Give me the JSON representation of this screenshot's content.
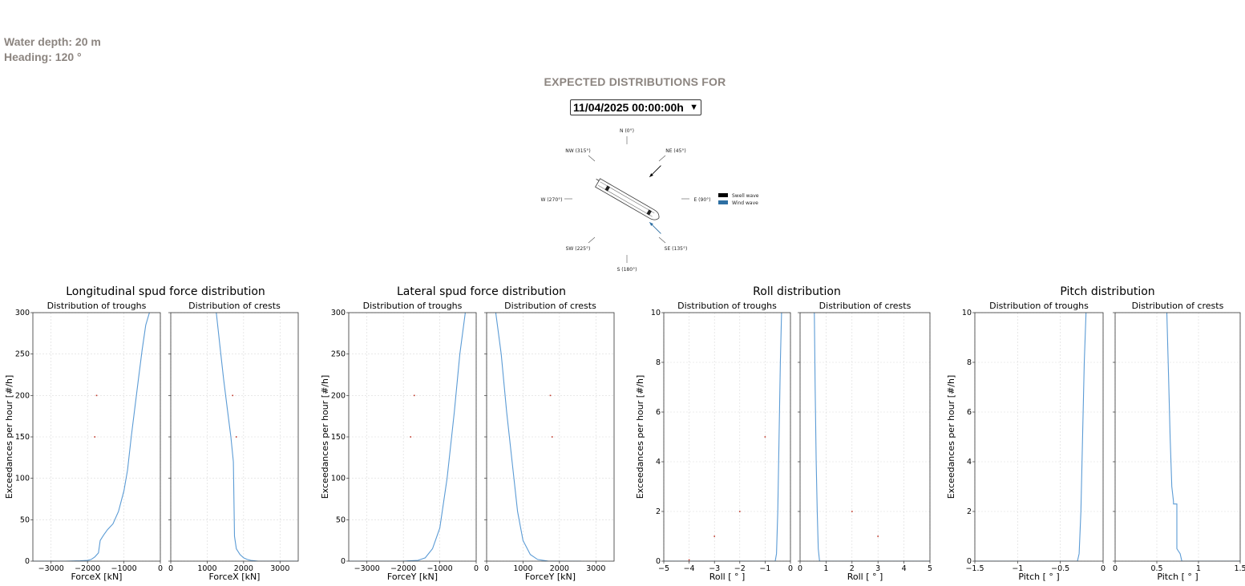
{
  "header": {
    "water_depth": "Water depth: 20 m",
    "heading": "Heading: 120 °",
    "title": "EXPECTED DISTRIBUTIONS FOR",
    "date_selected": "11/04/2025 00:00:00h"
  },
  "compass": {
    "labels": [
      "N (0°)",
      "NE (45°)",
      "E (90°)",
      "SE (135°)",
      "S (180°)",
      "SW (225°)",
      "W (270°)",
      "NW (315°)"
    ],
    "legend": [
      {
        "label": "Swell wave",
        "color": "#000000"
      },
      {
        "label": "Wind wave",
        "color": "#2e6fa3"
      }
    ],
    "swell_direction_deg": 45,
    "wind_direction_deg": 135,
    "vessel_heading_deg": 120
  },
  "colors": {
    "line": "#5b9bd5",
    "grid": "#d9d9d9",
    "marker": "#c0392b"
  },
  "chart_data": [
    {
      "type": "line",
      "title": "Longitudinal spud force distribution",
      "ylabel": "Exceedances per hour [#/h]",
      "ylim": [
        0,
        300
      ],
      "yticks": [
        0,
        50,
        100,
        150,
        200,
        250,
        300
      ],
      "grid": true,
      "panels": [
        {
          "subtitle": "Distribution of troughs",
          "xlabel": "ForceX [kN]",
          "xlim": [
            -3500,
            0
          ],
          "xticks": [
            -3000,
            -2000,
            -1000,
            0
          ],
          "series": [
            {
              "x": [
                -3500,
                -2600,
                -2200,
                -2000,
                -1900,
                -1800,
                -1700,
                -1650,
                -1550,
                -1450,
                -1300,
                -1150,
                -1000,
                -900,
                -800,
                -700,
                -600,
                -500,
                -400,
                -300
              ],
              "y": [
                0,
                0,
                0.5,
                1,
                2,
                5,
                10,
                25,
                32,
                38,
                45,
                60,
                85,
                110,
                150,
                185,
                220,
                255,
                285,
                300
              ]
            }
          ],
          "markers": [
            {
              "x": -1750,
              "y": 200
            },
            {
              "x": -1800,
              "y": 150
            }
          ]
        },
        {
          "subtitle": "Distribution of crests",
          "xlabel": "ForceX [kN]",
          "xlim": [
            0,
            3500
          ],
          "xticks": [
            0,
            1000,
            2000,
            3000
          ],
          "series": [
            {
              "x": [
                1250,
                1350,
                1450,
                1550,
                1650,
                1720,
                1750,
                1800,
                1900,
                2000,
                2100,
                2200,
                2400,
                3500
              ],
              "y": [
                300,
                260,
                220,
                185,
                150,
                120,
                30,
                15,
                8,
                4,
                2,
                1,
                0,
                0
              ]
            }
          ],
          "markers": [
            {
              "x": 1700,
              "y": 200
            },
            {
              "x": 1800,
              "y": 150
            }
          ]
        }
      ]
    },
    {
      "type": "line",
      "title": "Lateral spud force distribution",
      "ylabel": "Exceedances per hour [#/h]",
      "ylim": [
        0,
        300
      ],
      "yticks": [
        0,
        50,
        100,
        150,
        200,
        250,
        300
      ],
      "grid": true,
      "panels": [
        {
          "subtitle": "Distribution of troughs",
          "xlabel": "ForceY [kN]",
          "xlim": [
            -3500,
            0
          ],
          "xticks": [
            -3000,
            -2000,
            -1000,
            0
          ],
          "series": [
            {
              "x": [
                -3500,
                -2000,
                -1600,
                -1400,
                -1200,
                -1000,
                -800,
                -600,
                -450,
                -300
              ],
              "y": [
                0,
                0,
                1,
                4,
                15,
                40,
                100,
                180,
                250,
                300
              ]
            }
          ],
          "markers": [
            {
              "x": -1700,
              "y": 200
            },
            {
              "x": -1800,
              "y": 150
            }
          ]
        },
        {
          "subtitle": "Distribution of crests",
          "xlabel": "ForceY [kN]",
          "xlim": [
            0,
            3500
          ],
          "xticks": [
            0,
            1000,
            2000,
            3000
          ],
          "series": [
            {
              "x": [
                250,
                400,
                550,
                700,
                850,
                1000,
                1200,
                1400,
                1700,
                2600
              ],
              "y": [
                300,
                250,
                180,
                120,
                60,
                25,
                8,
                2,
                0,
                0
              ]
            }
          ],
          "markers": [
            {
              "x": 1750,
              "y": 200
            },
            {
              "x": 1800,
              "y": 150
            }
          ]
        }
      ]
    },
    {
      "type": "line",
      "title": "Roll distribution",
      "ylabel": "Exceedances per hour [#/h]",
      "ylim": [
        0,
        10
      ],
      "yticks": [
        0,
        2,
        4,
        6,
        8,
        10
      ],
      "grid": true,
      "panels": [
        {
          "subtitle": "Distribution of troughs",
          "xlabel": "Roll [ ° ]",
          "xlim": [
            -5,
            0
          ],
          "xticks": [
            -5,
            -4,
            -3,
            -2,
            -1,
            0
          ],
          "series": [
            {
              "x": [
                -5,
                -0.6,
                -0.55,
                -0.5,
                -0.45,
                -0.4,
                -0.35
              ],
              "y": [
                0,
                0,
                0.3,
                2,
                5,
                8,
                10
              ]
            }
          ],
          "markers": [
            {
              "x": -4,
              "y": 0.05
            },
            {
              "x": -3,
              "y": 1
            },
            {
              "x": -2,
              "y": 2
            },
            {
              "x": -1,
              "y": 5
            }
          ]
        },
        {
          "subtitle": "Distribution of crests",
          "xlabel": "Roll [ ° ]",
          "xlim": [
            0,
            5
          ],
          "xticks": [
            0,
            1,
            2,
            3,
            4,
            5
          ],
          "series": [
            {
              "x": [
                0.55,
                0.58,
                0.62,
                0.66,
                0.7,
                0.75,
                5
              ],
              "y": [
                10,
                7,
                4,
                2,
                0.5,
                0,
                0
              ]
            }
          ],
          "markers": [
            {
              "x": 2,
              "y": 2
            },
            {
              "x": 3,
              "y": 1
            }
          ]
        }
      ]
    },
    {
      "type": "line",
      "title": "Pitch distribution",
      "ylabel": "Exceedances per hour [#/h]",
      "ylim": [
        0,
        10
      ],
      "yticks": [
        0,
        2,
        4,
        6,
        8,
        10
      ],
      "grid": true,
      "panels": [
        {
          "subtitle": "Distribution of troughs",
          "xlabel": "Pitch [ ° ]",
          "xlim": [
            -1.5,
            0
          ],
          "xticks": [
            -1.5,
            -1.0,
            -0.5,
            0.0
          ],
          "series": [
            {
              "x": [
                -1.5,
                -0.3,
                -0.28,
                -0.26,
                -0.24,
                -0.22,
                -0.2
              ],
              "y": [
                0,
                0,
                0.3,
                2,
                5,
                8,
                10
              ]
            }
          ],
          "markers": []
        },
        {
          "subtitle": "Distribution of crests",
          "xlabel": "Pitch [ ° ]",
          "xlim": [
            0,
            1.5
          ],
          "xticks": [
            0.0,
            0.5,
            1.0,
            1.5
          ],
          "series": [
            {
              "x": [
                0.62,
                0.64,
                0.66,
                0.68,
                0.7,
                0.7,
                0.74,
                0.74,
                0.78,
                0.8,
                1.5
              ],
              "y": [
                10,
                7.5,
                5,
                3,
                2.4,
                2.3,
                2.3,
                0.5,
                0.3,
                0,
                0
              ]
            }
          ],
          "markers": []
        }
      ]
    }
  ]
}
